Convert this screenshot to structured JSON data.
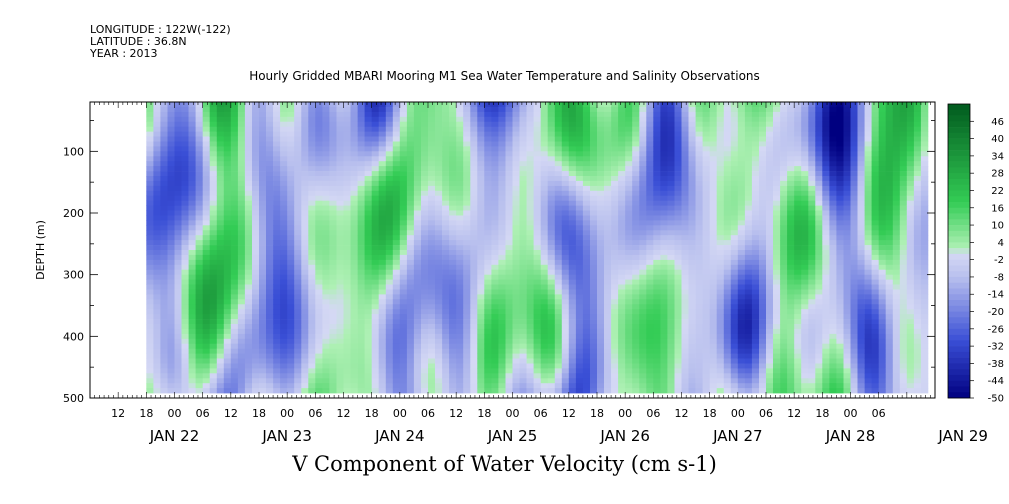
{
  "header": {
    "longitude": "LONGITUDE : 122W(-122)",
    "latitude": "LATITUDE : 36.8N",
    "year": "YEAR : 2013"
  },
  "chart_data": {
    "type": "heatmap",
    "title": "Hourly Gridded MBARI Mooring M1 Sea Water Temperature and Salinity Observations",
    "xlabel": "V Component of Water Velocity (cm s-1)",
    "ylabel": "DEPTH (m)",
    "y_range": [
      500,
      20
    ],
    "y_ticks": [
      100,
      200,
      300,
      400,
      500
    ],
    "x_range_hours": [
      "JAN 22 06",
      "JAN 29 18"
    ],
    "x_hour_ticks": [
      "12",
      "18",
      "00",
      "06",
      "12",
      "18",
      "00",
      "06",
      "12",
      "18",
      "00",
      "06",
      "12",
      "18",
      "00",
      "06",
      "12",
      "18",
      "00",
      "06",
      "12",
      "18",
      "00",
      "06",
      "12",
      "18",
      "00",
      "06"
    ],
    "date_labels": [
      "JAN 22",
      "JAN 23",
      "JAN 24",
      "JAN 25",
      "JAN 26",
      "JAN 27",
      "JAN 28",
      "JAN 29"
    ],
    "colorbar_levels": [
      "46",
      "40",
      "34",
      "28",
      "22",
      "16",
      "10",
      "4",
      "-2",
      "-8",
      "-14",
      "-20",
      "-26",
      "-32",
      "-38",
      "-44",
      "-50"
    ],
    "colorbar_range": [
      -50,
      52
    ],
    "colors": {
      "neg_strong": "#000080",
      "neg_mid": "#3a4fd6",
      "neg_weak": "#b9c0ee",
      "pos_weak": "#aef0b4",
      "pos_mid": "#33cc55",
      "pos_strong": "#005a1e"
    }
  }
}
